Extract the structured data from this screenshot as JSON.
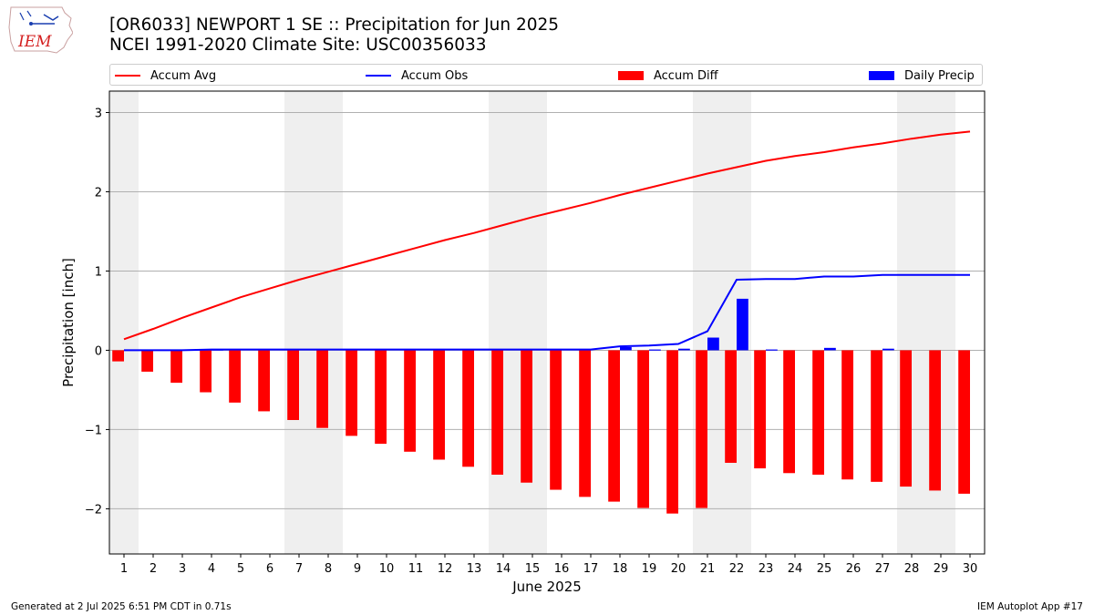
{
  "header": {
    "title_line1": "[OR6033] NEWPORT 1 SE :: Precipitation for Jun 2025",
    "title_line2": "NCEI 1991-2020 Climate Site: USC00356033"
  },
  "logo": {
    "text": "IEM",
    "icon": "iem-iowa-logo-icon"
  },
  "legend": {
    "items": [
      {
        "label": "Accum Avg",
        "color": "#ff0000",
        "kind": "line"
      },
      {
        "label": "Accum Obs",
        "color": "#0000ff",
        "kind": "line"
      },
      {
        "label": "Accum Diff",
        "color": "#ff0000",
        "kind": "bar"
      },
      {
        "label": "Daily Precip",
        "color": "#0000ff",
        "kind": "bar"
      }
    ]
  },
  "chart_data": {
    "type": "bar",
    "xlabel": "June 2025",
    "ylabel": "Precipitation [inch]",
    "ylim": [
      -2.57,
      3.27
    ],
    "yticks": [
      -2,
      -1,
      0,
      1,
      2,
      3
    ],
    "ytick_labels": [
      "−2",
      "−1",
      "0",
      "1",
      "2",
      "3"
    ],
    "grid": "horizontal",
    "legend_placement": "top",
    "x": [
      1,
      2,
      3,
      4,
      5,
      6,
      7,
      8,
      9,
      10,
      11,
      12,
      13,
      14,
      15,
      16,
      17,
      18,
      19,
      20,
      21,
      22,
      23,
      24,
      25,
      26,
      27,
      28,
      29,
      30
    ],
    "weekend_shading": [
      [
        1,
        1
      ],
      [
        7,
        8
      ],
      [
        14,
        15
      ],
      [
        21,
        22
      ],
      [
        28,
        29
      ]
    ],
    "shade_color": "#efefef",
    "series": [
      {
        "name": "Accum Avg",
        "kind": "line",
        "color": "#ff0000",
        "values": [
          0.14,
          0.27,
          0.41,
          0.54,
          0.67,
          0.78,
          0.89,
          0.99,
          1.09,
          1.19,
          1.29,
          1.39,
          1.48,
          1.58,
          1.68,
          1.77,
          1.86,
          1.96,
          2.05,
          2.14,
          2.23,
          2.31,
          2.39,
          2.45,
          2.5,
          2.56,
          2.61,
          2.67,
          2.72,
          2.76
        ]
      },
      {
        "name": "Accum Obs",
        "kind": "line",
        "color": "#0000ff",
        "values": [
          0.0,
          0.0,
          0.0,
          0.01,
          0.01,
          0.01,
          0.01,
          0.01,
          0.01,
          0.01,
          0.01,
          0.01,
          0.01,
          0.01,
          0.01,
          0.01,
          0.01,
          0.05,
          0.06,
          0.08,
          0.24,
          0.89,
          0.9,
          0.9,
          0.93,
          0.93,
          0.95,
          0.95,
          0.95,
          0.95
        ]
      },
      {
        "name": "Accum Diff",
        "kind": "bar",
        "color": "#ff0000",
        "values": [
          -0.14,
          -0.27,
          -0.41,
          -0.53,
          -0.66,
          -0.77,
          -0.88,
          -0.98,
          -1.08,
          -1.18,
          -1.28,
          -1.38,
          -1.47,
          -1.57,
          -1.67,
          -1.76,
          -1.85,
          -1.91,
          -1.99,
          -2.06,
          -1.99,
          -1.42,
          -1.49,
          -1.55,
          -1.57,
          -1.63,
          -1.66,
          -1.72,
          -1.77,
          -1.81
        ]
      },
      {
        "name": "Daily Precip",
        "kind": "bar",
        "color": "#0000ff",
        "values": [
          0,
          0,
          0,
          0.01,
          0,
          0,
          0,
          0,
          0,
          0,
          0,
          0,
          0,
          0,
          0,
          0,
          0,
          0.04,
          0.01,
          0.02,
          0.16,
          0.65,
          0.01,
          0,
          0.03,
          0,
          0.02,
          0,
          0,
          0
        ]
      }
    ]
  },
  "footer": {
    "left": "Generated at 2 Jul 2025 6:51 PM CDT in 0.71s",
    "right": "IEM Autoplot App #17"
  }
}
